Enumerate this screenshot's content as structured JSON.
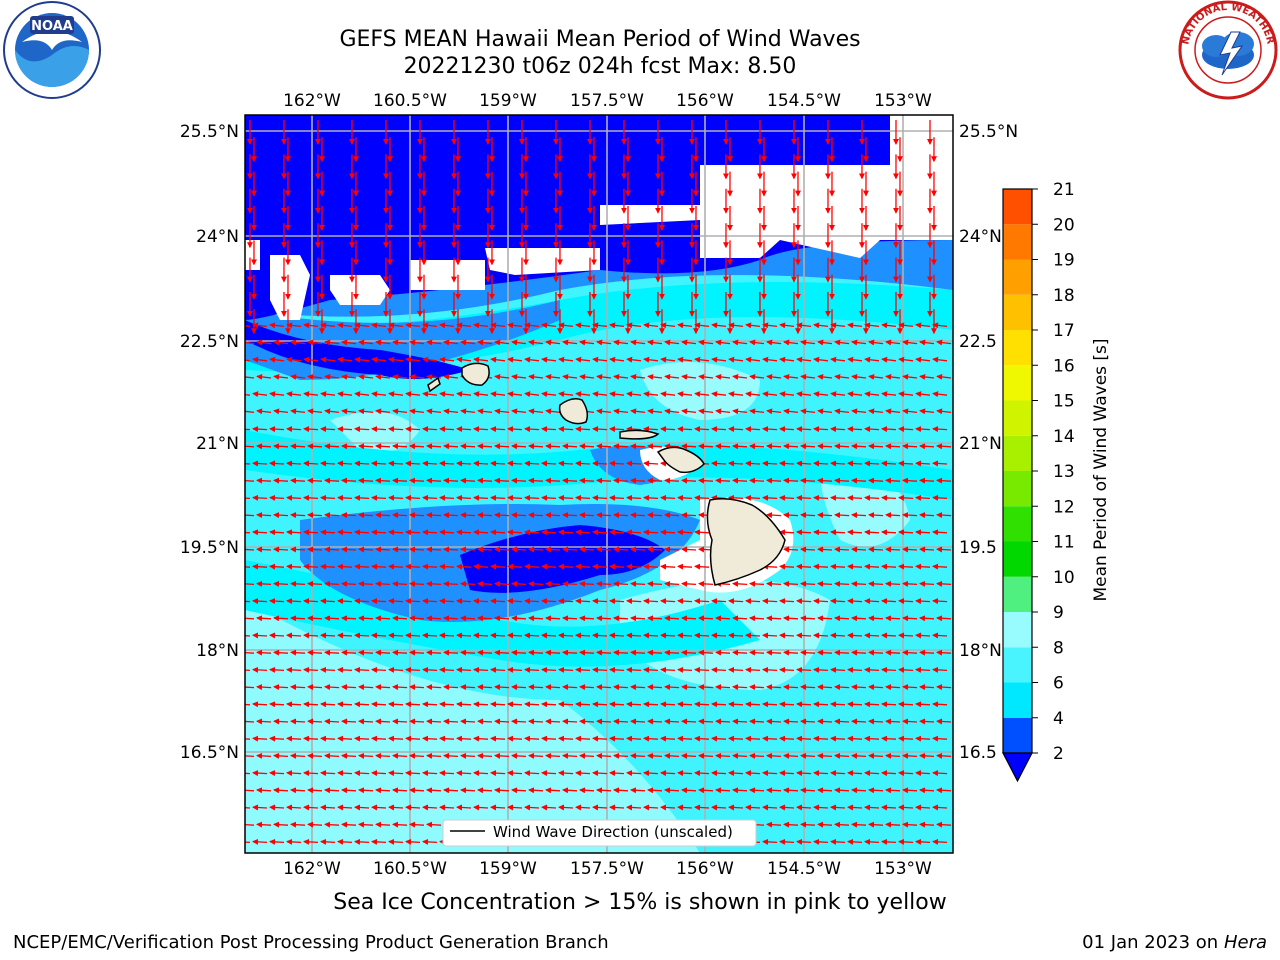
{
  "title": {
    "line1": "GEFS MEAN Hawaii Mean Period of Wind Waves",
    "line2": "20221230 t06z 024h fcst   Max: 8.50"
  },
  "axes": {
    "top_lon_labels": [
      "162°W",
      "160.5°W",
      "159°W",
      "157.5°W",
      "156°W",
      "154.5°W",
      "153°W"
    ],
    "bottom_lon_labels": [
      "162°W",
      "160.5°W",
      "159°W",
      "157.5°W",
      "156°W",
      "154.5°W",
      "153°W"
    ],
    "left_lat_labels": [
      "25.5°N",
      "24°N",
      "22.5°N",
      "21°N",
      "19.5°N",
      "18°N",
      "16.5°N"
    ],
    "right_lat_labels": [
      "25.5°N",
      "24°N",
      "22.5",
      "21°N",
      "19.5",
      "18°N",
      "16.5"
    ]
  },
  "legend": {
    "label": "Wind Wave Direction (unscaled)",
    "line_color": "#000000"
  },
  "colorbar": {
    "label": "Mean Period of Wind Waves [s]",
    "ticks": [
      "2",
      "4",
      "6",
      "8",
      "9",
      "10",
      "11",
      "12",
      "13",
      "14",
      "15",
      "16",
      "17",
      "18",
      "19",
      "20",
      "21"
    ],
    "colors": [
      "#0050ff",
      "#00e8ff",
      "#4af4ff",
      "#98fcff",
      "#50f080",
      "#00d800",
      "#30e000",
      "#78ea00",
      "#a8f000",
      "#d0f400",
      "#f0f800",
      "#ffe000",
      "#ffc000",
      "#ffa000",
      "#ff7800",
      "#ff5000",
      "#ff1800",
      "#ff0000"
    ],
    "under_color": "#0000ff"
  },
  "field_colors": {
    "dark_blue": "#0000ff",
    "mid_blue": "#1e90ff",
    "cyan": "#00f4ff",
    "light_cyan": "#40f4ff",
    "pale_cyan": "#98fcff",
    "land": "#efebd8",
    "arrow": "#ff0000"
  },
  "subtitle": "Sea Ice Concentration > 15% is shown in pink to yellow",
  "footer": {
    "left": "NCEP/EMC/Verification Post Processing Product Generation Branch",
    "date": "01 Jan 2023 on",
    "machine": "Hera"
  },
  "logos": {
    "left": "noaa-logo",
    "right": "nws-logo"
  }
}
